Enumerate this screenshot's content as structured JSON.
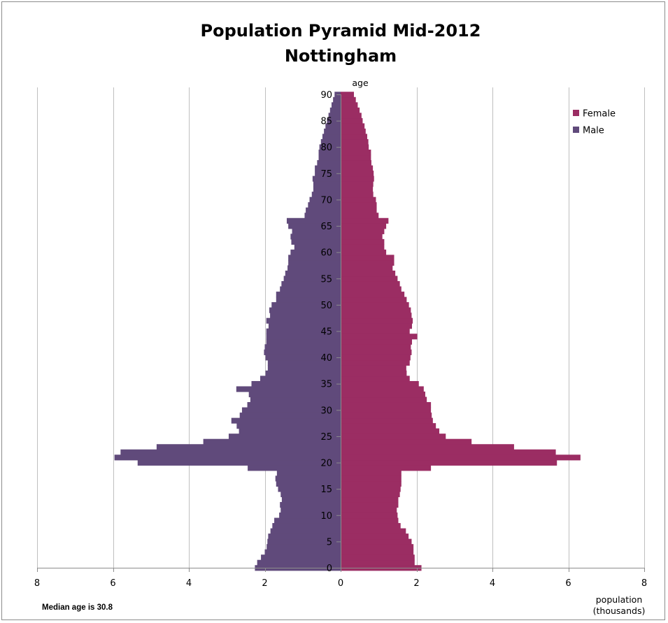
{
  "chart_data": {
    "type": "bar",
    "orientation": "horizontal-pyramid",
    "title": [
      "Population Pyramid Mid-2012",
      "Nottingham"
    ],
    "ylabel": "age",
    "xlabel": [
      "population",
      "(thousands)"
    ],
    "xlim": [
      -8,
      8
    ],
    "ylim": [
      0,
      90
    ],
    "x_ticks": [
      -8,
      -6,
      -4,
      -2,
      0,
      2,
      4,
      6,
      8
    ],
    "x_tick_labels": [
      "8",
      "6",
      "4",
      "2",
      "0",
      "2",
      "4",
      "6",
      "8"
    ],
    "y_ticks": [
      0,
      5,
      10,
      15,
      20,
      25,
      30,
      35,
      40,
      45,
      50,
      55,
      60,
      65,
      70,
      75,
      80,
      85,
      90
    ],
    "y_tick_labels": [
      "0",
      "5",
      "10",
      "15",
      "20",
      "25",
      "30",
      "35",
      "40",
      "45",
      "50",
      "55",
      "60",
      "65",
      "70",
      "75",
      "80",
      "85",
      "90"
    ],
    "grid": "vertical",
    "legend": "top-right",
    "ages": [
      0,
      1,
      2,
      3,
      4,
      5,
      6,
      7,
      8,
      9,
      10,
      11,
      12,
      13,
      14,
      15,
      16,
      17,
      18,
      19,
      20,
      21,
      22,
      23,
      24,
      25,
      26,
      27,
      28,
      29,
      30,
      31,
      32,
      33,
      34,
      35,
      36,
      37,
      38,
      39,
      40,
      41,
      42,
      43,
      44,
      45,
      46,
      47,
      48,
      49,
      50,
      51,
      52,
      53,
      54,
      55,
      56,
      57,
      58,
      59,
      60,
      61,
      62,
      63,
      64,
      65,
      66,
      67,
      68,
      69,
      70,
      71,
      72,
      73,
      74,
      75,
      76,
      77,
      78,
      79,
      80,
      81,
      82,
      83,
      84,
      85,
      86,
      87,
      88,
      89,
      90
    ],
    "series": [
      {
        "name": "Female",
        "color": "#9b2d63",
        "values": [
          2.13,
          1.95,
          1.95,
          1.92,
          1.92,
          1.87,
          1.79,
          1.72,
          1.58,
          1.52,
          1.5,
          1.48,
          1.52,
          1.52,
          1.56,
          1.58,
          1.6,
          1.6,
          1.6,
          2.38,
          5.7,
          6.32,
          5.67,
          4.57,
          3.45,
          2.77,
          2.6,
          2.51,
          2.43,
          2.4,
          2.38,
          2.38,
          2.27,
          2.23,
          2.19,
          2.06,
          1.82,
          1.74,
          1.73,
          1.82,
          1.84,
          1.87,
          1.85,
          1.88,
          2.02,
          1.82,
          1.88,
          1.9,
          1.87,
          1.85,
          1.8,
          1.74,
          1.68,
          1.6,
          1.56,
          1.5,
          1.44,
          1.37,
          1.41,
          1.41,
          1.2,
          1.15,
          1.15,
          1.1,
          1.15,
          1.2,
          1.26,
          1.0,
          0.95,
          0.95,
          0.93,
          0.86,
          0.85,
          0.86,
          0.88,
          0.87,
          0.85,
          0.81,
          0.8,
          0.8,
          0.74,
          0.73,
          0.7,
          0.66,
          0.63,
          0.58,
          0.55,
          0.5,
          0.45,
          0.4,
          0.35
        ]
      },
      {
        "name": "Male",
        "color": "#604a7b",
        "values": [
          2.26,
          2.2,
          2.1,
          2.0,
          1.95,
          1.93,
          1.91,
          1.85,
          1.8,
          1.75,
          1.62,
          1.58,
          1.6,
          1.55,
          1.58,
          1.65,
          1.7,
          1.72,
          1.68,
          2.45,
          5.35,
          5.96,
          5.8,
          4.85,
          3.62,
          2.95,
          2.68,
          2.74,
          2.88,
          2.66,
          2.6,
          2.46,
          2.38,
          2.42,
          2.75,
          2.35,
          2.12,
          1.98,
          1.92,
          1.92,
          1.98,
          2.02,
          2.0,
          1.96,
          1.96,
          1.96,
          1.9,
          1.96,
          1.86,
          1.88,
          1.82,
          1.7,
          1.7,
          1.6,
          1.56,
          1.5,
          1.46,
          1.4,
          1.38,
          1.38,
          1.32,
          1.22,
          1.3,
          1.32,
          1.28,
          1.38,
          1.42,
          0.95,
          0.92,
          0.86,
          0.82,
          0.76,
          0.72,
          0.72,
          0.74,
          0.68,
          0.68,
          0.62,
          0.58,
          0.58,
          0.56,
          0.52,
          0.48,
          0.44,
          0.4,
          0.36,
          0.32,
          0.28,
          0.24,
          0.2,
          0.16
        ]
      }
    ],
    "annotations": [
      "Median age is 30.8"
    ]
  }
}
